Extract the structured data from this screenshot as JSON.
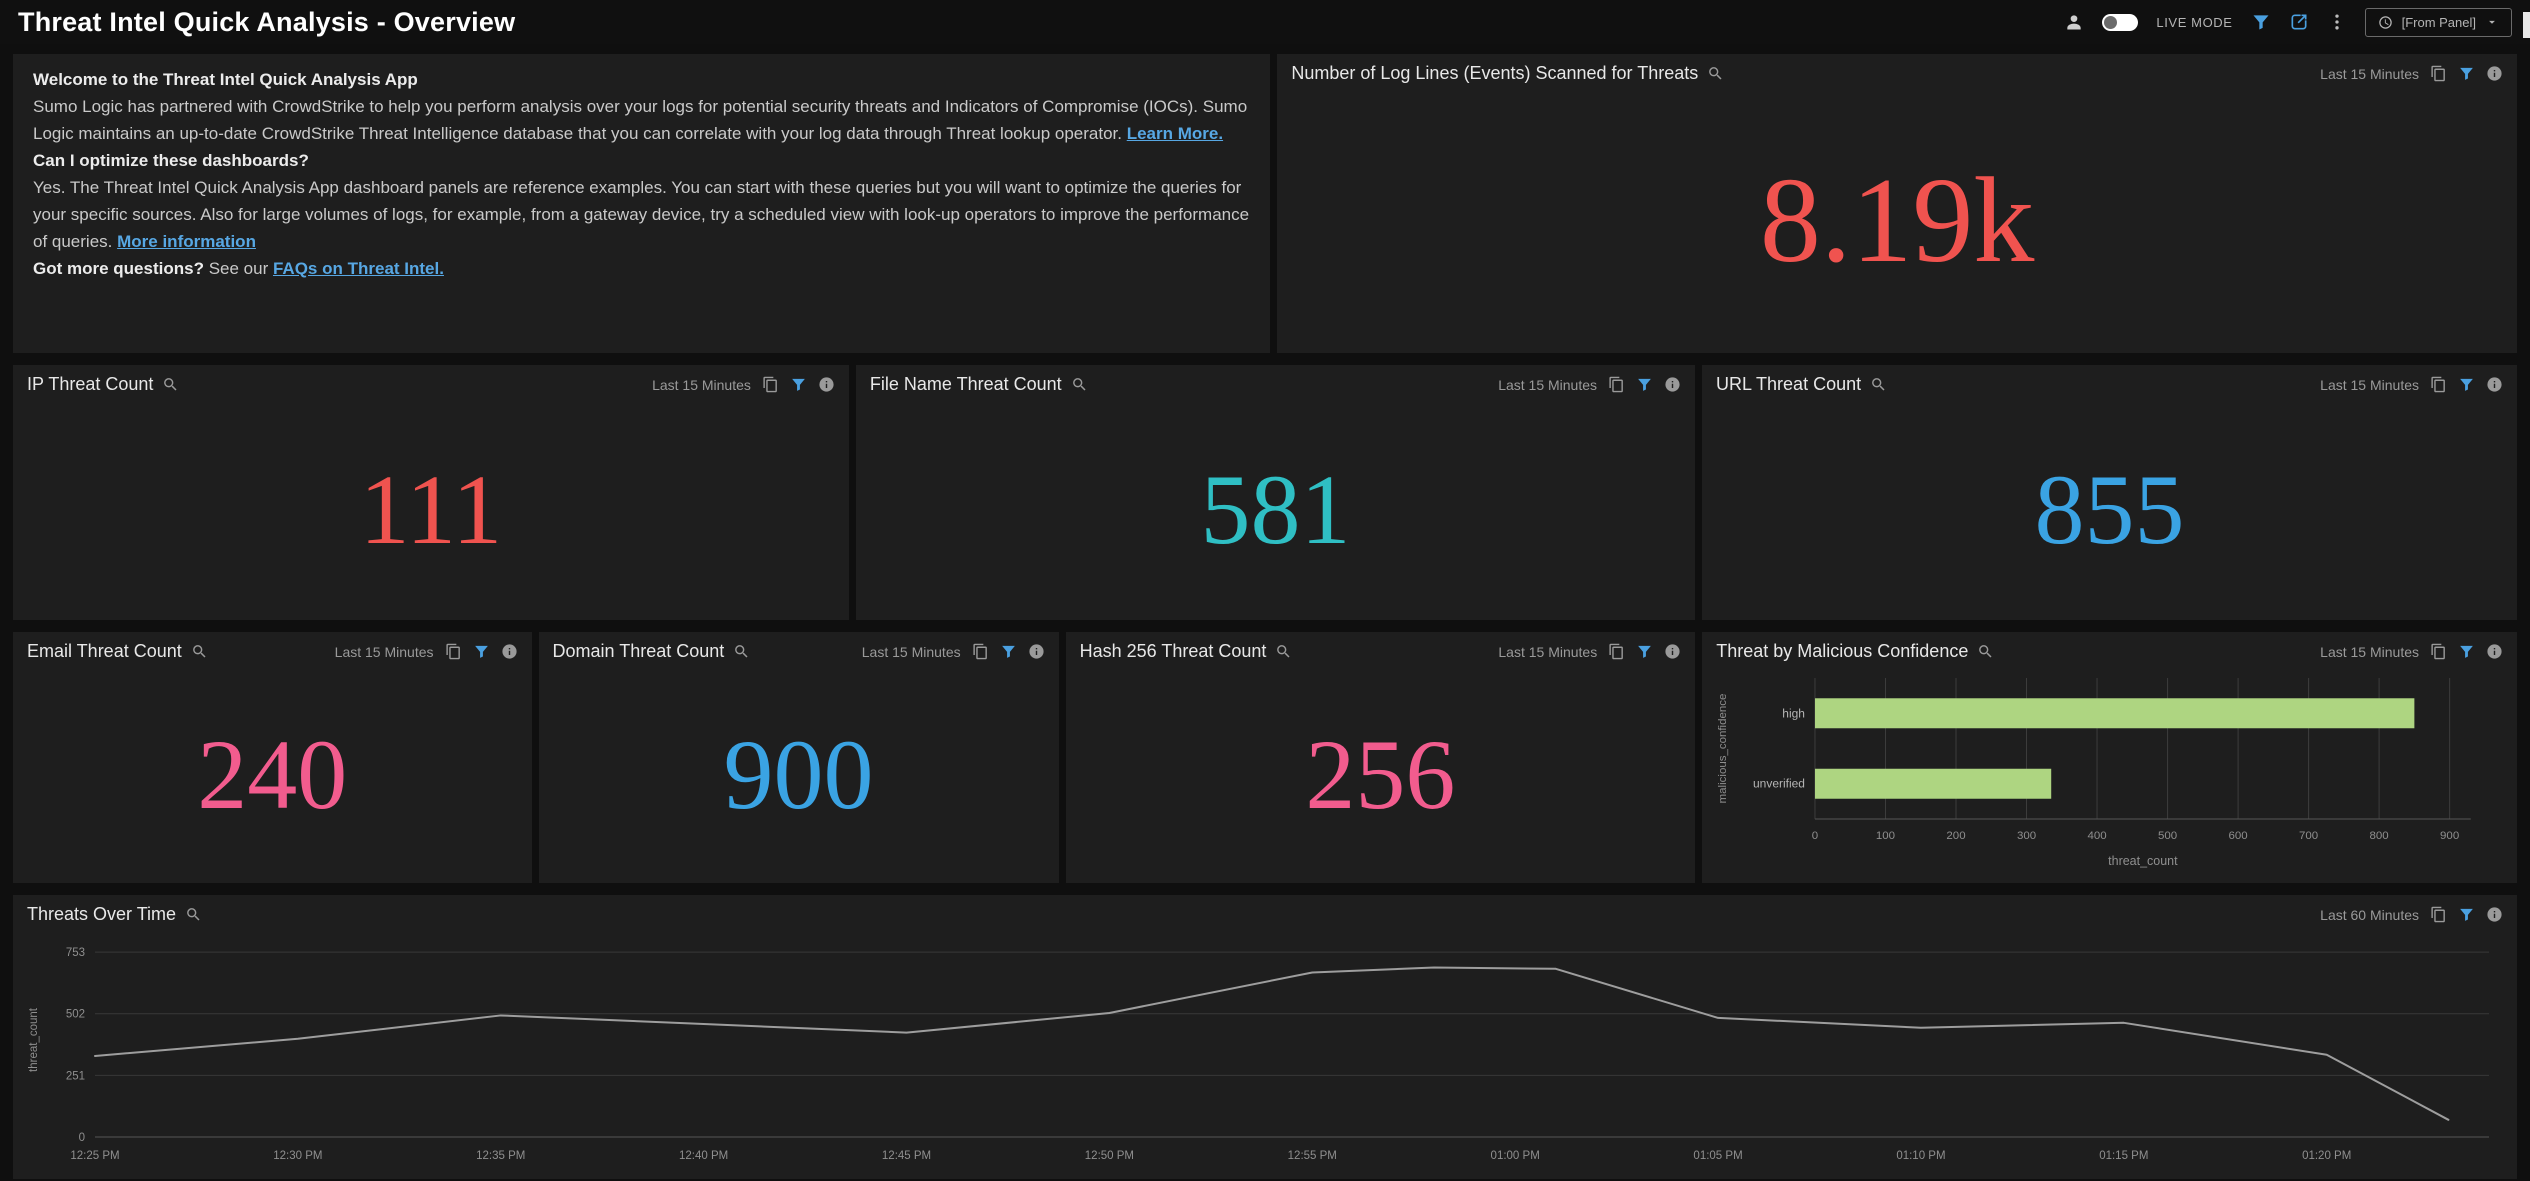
{
  "colors": {
    "red": "#f0534f",
    "teal": "#2fbfc4",
    "blue": "#3aa3e3",
    "pink": "#f25c8e",
    "bar_green": "#aed581",
    "line_gray": "#9e9e9e",
    "link_blue": "#57a7e3",
    "accent_filter_blue": "#4aa0e0"
  },
  "header": {
    "title": "Threat Intel Quick Analysis - Overview",
    "live_mode_label": "LIVE MODE",
    "time_range_value": "[From Panel]"
  },
  "panels": {
    "welcome": {
      "title": "Welcome to the Threat Intel Quick Analysis App",
      "para1": "Sumo Logic has partnered with CrowdStrike to help you perform analysis over your logs for potential security threats and Indicators of Compromise (IOCs). Sumo Logic maintains an up-to-date CrowdStrike Threat Intelligence database that you can correlate with your log data through Threat lookup operator.",
      "para1_link": "Learn More.",
      "q1": "Can I optimize these dashboards?",
      "para2": "Yes. The Threat Intel Quick Analysis App dashboard panels are reference examples. You can start with these queries but you will want to optimize the queries for your specific sources. Also for large volumes of logs, for example, from a gateway device, try a scheduled view with look-up operators to improve the performance of queries.",
      "para2_link": "More information",
      "q2_bold": "Got more questions?",
      "q2_mid": "See our",
      "q2_link": "FAQs on Threat Intel."
    },
    "log_lines": {
      "title": "Number of Log Lines (Events) Scanned for Threats",
      "time_range": "Last 15 Minutes",
      "value": "8.19k",
      "color": "#f0534f"
    },
    "ip": {
      "title": "IP Threat Count",
      "time_range": "Last 15 Minutes",
      "value": "111",
      "color": "#f0534f"
    },
    "file_name": {
      "title": "File Name Threat Count",
      "time_range": "Last 15 Minutes",
      "value": "581",
      "color": "#2fbfc4"
    },
    "url": {
      "title": "URL Threat Count",
      "time_range": "Last 15 Minutes",
      "value": "855",
      "color": "#3aa3e3"
    },
    "email": {
      "title": "Email Threat Count",
      "time_range": "Last 15 Minutes",
      "value": "240",
      "color": "#f25c8e"
    },
    "domain": {
      "title": "Domain Threat Count",
      "time_range": "Last 15 Minutes",
      "value": "900",
      "color": "#3aa3e3"
    },
    "hash": {
      "title": "Hash 256 Threat Count",
      "time_range": "Last 15 Minutes",
      "value": "256",
      "color": "#f25c8e"
    },
    "confidence": {
      "title": "Threat by Malicious Confidence",
      "time_range": "Last 15 Minutes"
    },
    "over_time": {
      "title": "Threats Over Time",
      "time_range": "Last 60 Minutes"
    }
  },
  "chart_data": [
    {
      "id": "threat-by-malicious-confidence",
      "type": "bar",
      "orientation": "horizontal",
      "title": "Threat by Malicious Confidence",
      "categories": [
        "high",
        "unverified"
      ],
      "values": [
        850,
        335
      ],
      "xlabel": "threat_count",
      "ylabel": "malicious_confidence",
      "xticks": [
        0,
        100,
        200,
        300,
        400,
        500,
        600,
        700,
        800,
        900
      ],
      "xlim": [
        0,
        930
      ],
      "bar_color": "#aed581",
      "grid": true,
      "legend_position": "none"
    },
    {
      "id": "threats-over-time",
      "type": "line",
      "title": "Threats Over Time",
      "xlabel": "",
      "ylabel": "threat_count",
      "yticks": [
        0,
        251,
        502,
        753
      ],
      "ylim": [
        0,
        790
      ],
      "xlim": [
        0,
        59
      ],
      "xtick_pos": [
        0,
        5,
        10,
        15,
        20,
        25,
        30,
        35,
        40,
        45,
        50,
        55
      ],
      "xtick_labels": [
        "12:25 PM",
        "12:30 PM",
        "12:35 PM",
        "12:40 PM",
        "12:45 PM",
        "12:50 PM",
        "12:55 PM",
        "01:00 PM",
        "01:05 PM",
        "01:10 PM",
        "01:15 PM",
        "01:20 PM"
      ],
      "points": [
        [
          0,
          330
        ],
        [
          5,
          400
        ],
        [
          10,
          495
        ],
        [
          15,
          460
        ],
        [
          20,
          425
        ],
        [
          25,
          505
        ],
        [
          30,
          670
        ],
        [
          33,
          690
        ],
        [
          36,
          685
        ],
        [
          40,
          485
        ],
        [
          45,
          445
        ],
        [
          50,
          465
        ],
        [
          55,
          335
        ],
        [
          58,
          70
        ]
      ],
      "line_color": "#9e9e9e",
      "grid": "horizontal"
    }
  ]
}
